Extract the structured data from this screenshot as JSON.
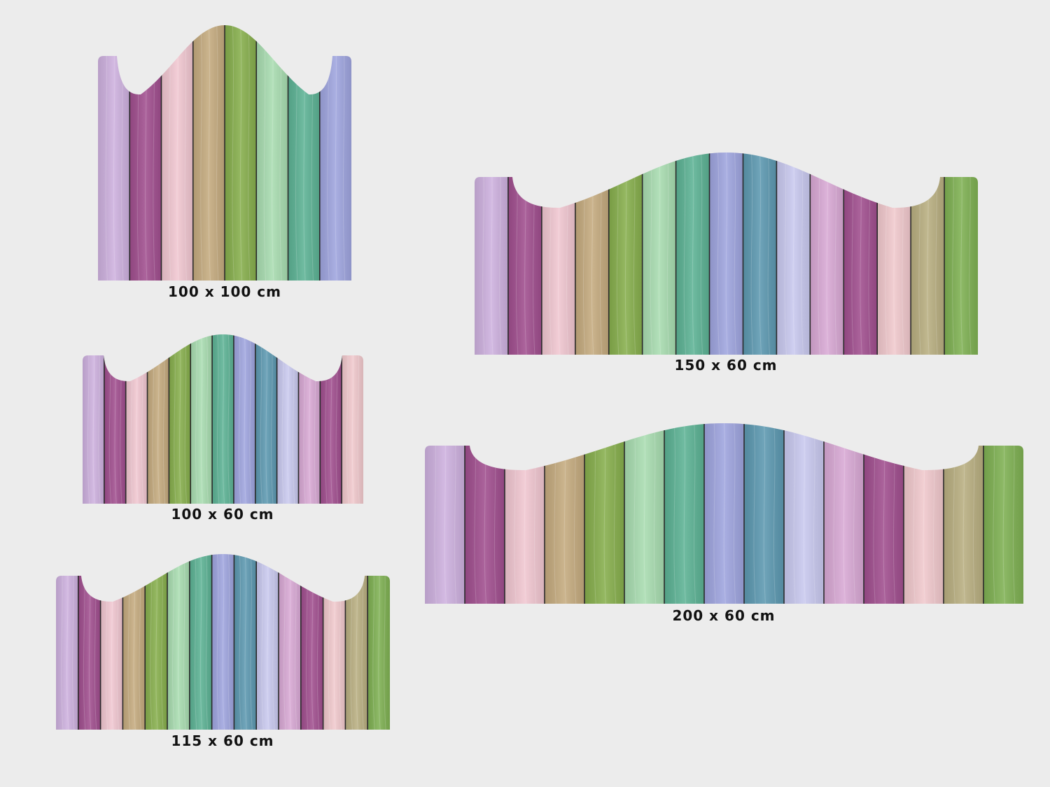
{
  "palette": [
    "#cdb0de",
    "#a04e8e",
    "#f0c6d0",
    "#c4aa7e",
    "#86ae4c",
    "#a8dcb0",
    "#5cb294",
    "#9ea4de",
    "#5c98b0",
    "#c8c8ee",
    "#d8a8d4",
    "#a04e8e",
    "#f0c8cc",
    "#b8ae80",
    "#7eb052"
  ],
  "headboards": [
    {
      "id": "hb-100x100",
      "label": "100 x 100 cm"
    },
    {
      "id": "hb-100x60",
      "label": "100 x 60 cm"
    },
    {
      "id": "hb-115x60",
      "label": "115 x 60 cm"
    },
    {
      "id": "hb-150x60",
      "label": "150 x 60 cm"
    },
    {
      "id": "hb-200x60",
      "label": "200 x 60 cm"
    }
  ]
}
